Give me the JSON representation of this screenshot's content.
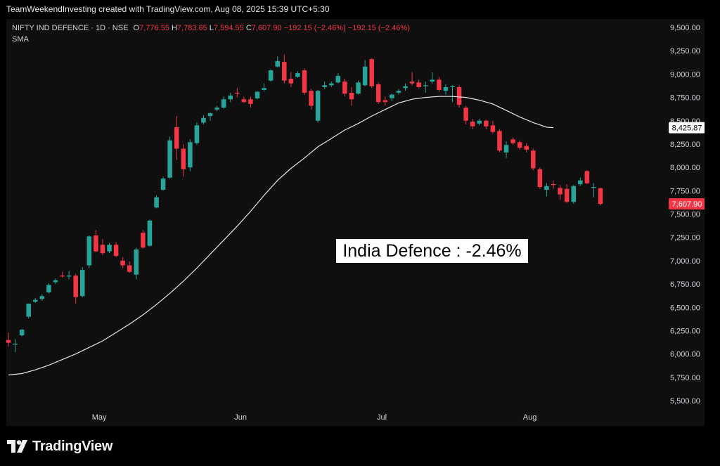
{
  "header": {
    "credit": "TeamWeekendInvesting created with TradingView.com, Aug 08, 2025 15:39 UTC+5:30"
  },
  "legend": {
    "symbol": "NIFTY IND DEFENCE · 1D · NSE",
    "open_label": "O",
    "open": "7,776.55",
    "high_label": "H",
    "high": "7,783.65",
    "low_label": "L",
    "low": "7,594.55",
    "close_label": "C",
    "close": "7,607.90",
    "change": "−192.15 (−2.46%)",
    "change2": "−192.15 (−2.46%)",
    "indicator": "SMA"
  },
  "annotation": "India Defence : -2.46%",
  "brand": {
    "name": "TradingView",
    "icon": "tradingview-logo-icon"
  },
  "colors": {
    "background": "#000000",
    "plot": "#0f0f0f",
    "up": "#26a69a",
    "down": "#f23645",
    "sma": "#e6e6e6",
    "sma_badge": "#ffffff",
    "price_badge": "#f23645"
  },
  "chart_data": {
    "type": "candlestick",
    "title": "",
    "x_labels": [
      "May",
      "Jun",
      "Jul",
      "Aug"
    ],
    "y_ticks": [
      "5,500.00",
      "5,750.00",
      "6,000.00",
      "6,250.00",
      "6,500.00",
      "6,750.00",
      "7,000.00",
      "7,250.00",
      "7,500.00",
      "7,750.00",
      "8,000.00",
      "8,250.00",
      "8,500.00",
      "8,750.00",
      "9,000.00",
      "9,250.00",
      "9,500.00"
    ],
    "ylim": [
      5480,
      9550
    ],
    "grid": false,
    "sma_value_label": "8,425.87",
    "last_price_label": "7,607.90",
    "candles": [
      {
        "date": "Apr 08",
        "o": 6150,
        "h": 6230,
        "l": 6080,
        "c": 6120
      },
      {
        "date": "Apr 09",
        "o": 6110,
        "h": 6160,
        "l": 6020,
        "c": 6110
      },
      {
        "date": "Apr 11",
        "o": 6200,
        "h": 6270,
        "l": 6190,
        "c": 6260
      },
      {
        "date": "Apr 15",
        "o": 6400,
        "h": 6520,
        "l": 6380,
        "c": 6540
      },
      {
        "date": "Apr 16",
        "o": 6560,
        "h": 6600,
        "l": 6550,
        "c": 6580
      },
      {
        "date": "Apr 17",
        "o": 6590,
        "h": 6640,
        "l": 6570,
        "c": 6620
      },
      {
        "date": "Apr 21",
        "o": 6660,
        "h": 6760,
        "l": 6650,
        "c": 6740
      },
      {
        "date": "Apr 22",
        "o": 6770,
        "h": 6810,
        "l": 6750,
        "c": 6790
      },
      {
        "date": "Apr 23",
        "o": 6840,
        "h": 6880,
        "l": 6820,
        "c": 6830
      },
      {
        "date": "Apr 24",
        "o": 6830,
        "h": 6890,
        "l": 6800,
        "c": 6840
      },
      {
        "date": "Apr 25",
        "o": 6840,
        "h": 6860,
        "l": 6540,
        "c": 6610
      },
      {
        "date": "Apr 28",
        "o": 6620,
        "h": 6930,
        "l": 6610,
        "c": 6900
      },
      {
        "date": "Apr 29",
        "o": 6950,
        "h": 7270,
        "l": 6920,
        "c": 7260
      },
      {
        "date": "Apr 30",
        "o": 7270,
        "h": 7330,
        "l": 7090,
        "c": 7100
      },
      {
        "date": "May 02",
        "o": 7170,
        "h": 7230,
        "l": 7060,
        "c": 7080
      },
      {
        "date": "May 05",
        "o": 7100,
        "h": 7190,
        "l": 7080,
        "c": 7170
      },
      {
        "date": "May 06",
        "o": 7170,
        "h": 7200,
        "l": 7040,
        "c": 7050
      },
      {
        "date": "May 07",
        "o": 7000,
        "h": 7040,
        "l": 6920,
        "c": 6950
      },
      {
        "date": "May 08",
        "o": 6950,
        "h": 6990,
        "l": 6870,
        "c": 6880
      },
      {
        "date": "May 09",
        "o": 6850,
        "h": 7140,
        "l": 6800,
        "c": 7120
      },
      {
        "date": "May 12",
        "o": 7300,
        "h": 7330,
        "l": 7130,
        "c": 7140
      },
      {
        "date": "May 13",
        "o": 7160,
        "h": 7440,
        "l": 7150,
        "c": 7430
      },
      {
        "date": "May 14",
        "o": 7570,
        "h": 7700,
        "l": 7560,
        "c": 7680
      },
      {
        "date": "May 15",
        "o": 7760,
        "h": 7900,
        "l": 7750,
        "c": 7880
      },
      {
        "date": "May 16",
        "o": 7890,
        "h": 8330,
        "l": 7880,
        "c": 8290
      },
      {
        "date": "May 19",
        "o": 8430,
        "h": 8550,
        "l": 8080,
        "c": 8200
      },
      {
        "date": "May 20",
        "o": 8200,
        "h": 8250,
        "l": 7900,
        "c": 7980
      },
      {
        "date": "May 21",
        "o": 8000,
        "h": 8300,
        "l": 7960,
        "c": 8270
      },
      {
        "date": "May 22",
        "o": 8260,
        "h": 8480,
        "l": 8240,
        "c": 8450
      },
      {
        "date": "May 23",
        "o": 8480,
        "h": 8560,
        "l": 8460,
        "c": 8530
      },
      {
        "date": "May 26",
        "o": 8550,
        "h": 8590,
        "l": 8500,
        "c": 8580
      },
      {
        "date": "May 27",
        "o": 8620,
        "h": 8660,
        "l": 8600,
        "c": 8640
      },
      {
        "date": "May 28",
        "o": 8640,
        "h": 8760,
        "l": 8630,
        "c": 8730
      },
      {
        "date": "May 29",
        "o": 8730,
        "h": 8800,
        "l": 8700,
        "c": 8770
      },
      {
        "date": "May 30",
        "o": 8800,
        "h": 8850,
        "l": 8750,
        "c": 8790
      },
      {
        "date": "Jun 02",
        "o": 8730,
        "h": 8760,
        "l": 8690,
        "c": 8700
      },
      {
        "date": "Jun 03",
        "o": 8730,
        "h": 8760,
        "l": 8640,
        "c": 8680
      },
      {
        "date": "Jun 04",
        "o": 8740,
        "h": 8820,
        "l": 8730,
        "c": 8810
      },
      {
        "date": "Jun 05",
        "o": 8830,
        "h": 8900,
        "l": 8810,
        "c": 8850
      },
      {
        "date": "Jun 06",
        "o": 8930,
        "h": 9050,
        "l": 8920,
        "c": 9040
      },
      {
        "date": "Jun 09",
        "o": 9080,
        "h": 9190,
        "l": 9070,
        "c": 9140
      },
      {
        "date": "Jun 10",
        "o": 9130,
        "h": 9210,
        "l": 8900,
        "c": 8930
      },
      {
        "date": "Jun 11",
        "o": 8950,
        "h": 9020,
        "l": 8860,
        "c": 8900
      },
      {
        "date": "Jun 12",
        "o": 8970,
        "h": 9030,
        "l": 8960,
        "c": 9010
      },
      {
        "date": "Jun 13",
        "o": 9040,
        "h": 9060,
        "l": 8780,
        "c": 8800
      },
      {
        "date": "Jun 16",
        "o": 8820,
        "h": 8840,
        "l": 8620,
        "c": 8660
      },
      {
        "date": "Jun 17",
        "o": 8500,
        "h": 8830,
        "l": 8480,
        "c": 8820
      },
      {
        "date": "Jun 18",
        "o": 8860,
        "h": 8920,
        "l": 8840,
        "c": 8880
      },
      {
        "date": "Jun 19",
        "o": 8880,
        "h": 8920,
        "l": 8860,
        "c": 8900
      },
      {
        "date": "Jun 20",
        "o": 8910,
        "h": 9010,
        "l": 8900,
        "c": 8980
      },
      {
        "date": "Jun 23",
        "o": 8920,
        "h": 8950,
        "l": 8760,
        "c": 8790
      },
      {
        "date": "Jun 24",
        "o": 8800,
        "h": 8860,
        "l": 8660,
        "c": 8730
      },
      {
        "date": "Jun 25",
        "o": 8790,
        "h": 8930,
        "l": 8780,
        "c": 8910
      },
      {
        "date": "Jun 26",
        "o": 8880,
        "h": 9150,
        "l": 8870,
        "c": 9080
      },
      {
        "date": "Jun 27",
        "o": 9160,
        "h": 9170,
        "l": 8850,
        "c": 8870
      },
      {
        "date": "Jun 30",
        "o": 8890,
        "h": 8910,
        "l": 8680,
        "c": 8700
      },
      {
        "date": "Jul 01",
        "o": 8720,
        "h": 8760,
        "l": 8660,
        "c": 8700
      },
      {
        "date": "Jul 02",
        "o": 8740,
        "h": 8790,
        "l": 8710,
        "c": 8780
      },
      {
        "date": "Jul 03",
        "o": 8800,
        "h": 8840,
        "l": 8780,
        "c": 8820
      },
      {
        "date": "Jul 04",
        "o": 8850,
        "h": 8900,
        "l": 8820,
        "c": 8870
      },
      {
        "date": "Jul 07",
        "o": 8920,
        "h": 9020,
        "l": 8880,
        "c": 8900
      },
      {
        "date": "Jul 08",
        "o": 8910,
        "h": 8940,
        "l": 8850,
        "c": 8860
      },
      {
        "date": "Jul 09",
        "o": 8870,
        "h": 8920,
        "l": 8800,
        "c": 8880
      },
      {
        "date": "Jul 10",
        "o": 8920,
        "h": 9020,
        "l": 8900,
        "c": 8940
      },
      {
        "date": "Jul 11",
        "o": 8940,
        "h": 8970,
        "l": 8810,
        "c": 8830
      },
      {
        "date": "Jul 14",
        "o": 8820,
        "h": 8890,
        "l": 8780,
        "c": 8860
      },
      {
        "date": "Jul 15",
        "o": 8860,
        "h": 8880,
        "l": 8700,
        "c": 8870
      },
      {
        "date": "Jul 16",
        "o": 8860,
        "h": 8880,
        "l": 8640,
        "c": 8670
      },
      {
        "date": "Jul 17",
        "o": 8640,
        "h": 8660,
        "l": 8460,
        "c": 8500
      },
      {
        "date": "Jul 18",
        "o": 8490,
        "h": 8520,
        "l": 8410,
        "c": 8440
      },
      {
        "date": "Jul 21",
        "o": 8470,
        "h": 8520,
        "l": 8450,
        "c": 8500
      },
      {
        "date": "Jul 22",
        "o": 8500,
        "h": 8510,
        "l": 8410,
        "c": 8440
      },
      {
        "date": "Jul 23",
        "o": 8450,
        "h": 8500,
        "l": 8360,
        "c": 8380
      },
      {
        "date": "Jul 24",
        "o": 8390,
        "h": 8410,
        "l": 8160,
        "c": 8180
      },
      {
        "date": "Jul 25",
        "o": 8160,
        "h": 8280,
        "l": 8100,
        "c": 8240
      },
      {
        "date": "Jul 28",
        "o": 8300,
        "h": 8320,
        "l": 8240,
        "c": 8260
      },
      {
        "date": "Jul 29",
        "o": 8270,
        "h": 8290,
        "l": 8190,
        "c": 8210
      },
      {
        "date": "Jul 30",
        "o": 8230,
        "h": 8260,
        "l": 8160,
        "c": 8190
      },
      {
        "date": "Jul 31",
        "o": 8180,
        "h": 8200,
        "l": 7970,
        "c": 7990
      },
      {
        "date": "Aug 01",
        "o": 7980,
        "h": 8000,
        "l": 7770,
        "c": 7790
      },
      {
        "date": "Aug 04",
        "o": 7760,
        "h": 7830,
        "l": 7690,
        "c": 7800
      },
      {
        "date": "Aug 05",
        "o": 7820,
        "h": 7860,
        "l": 7770,
        "c": 7810
      },
      {
        "date": "Aug 06",
        "o": 7780,
        "h": 7810,
        "l": 7650,
        "c": 7710
      },
      {
        "date": "Aug 07",
        "o": 7770,
        "h": 7820,
        "l": 7620,
        "c": 7630
      },
      {
        "date": "Aug 08a",
        "o": 7630,
        "h": 7810,
        "l": 7610,
        "c": 7800
      },
      {
        "date": "Aug 08b",
        "o": 7820,
        "h": 7890,
        "l": 7800,
        "c": 7860
      },
      {
        "date": "Aug 08c",
        "o": 7960,
        "h": 7970,
        "l": 7820,
        "c": 7830
      },
      {
        "date": "Aug 08d",
        "o": 7790,
        "h": 7830,
        "l": 7680,
        "c": 7790
      },
      {
        "date": "Aug 08",
        "o": 7776.55,
        "h": 7783.65,
        "l": 7594.55,
        "c": 7607.9
      }
    ],
    "sma": [
      {
        "i": 0,
        "v": 5775
      },
      {
        "i": 2,
        "v": 5790
      },
      {
        "i": 4,
        "v": 5830
      },
      {
        "i": 6,
        "v": 5880
      },
      {
        "i": 8,
        "v": 5940
      },
      {
        "i": 10,
        "v": 6000
      },
      {
        "i": 12,
        "v": 6070
      },
      {
        "i": 14,
        "v": 6140
      },
      {
        "i": 16,
        "v": 6230
      },
      {
        "i": 18,
        "v": 6320
      },
      {
        "i": 20,
        "v": 6420
      },
      {
        "i": 22,
        "v": 6530
      },
      {
        "i": 24,
        "v": 6650
      },
      {
        "i": 26,
        "v": 6780
      },
      {
        "i": 28,
        "v": 6920
      },
      {
        "i": 30,
        "v": 7070
      },
      {
        "i": 32,
        "v": 7220
      },
      {
        "i": 34,
        "v": 7370
      },
      {
        "i": 36,
        "v": 7530
      },
      {
        "i": 38,
        "v": 7700
      },
      {
        "i": 40,
        "v": 7860
      },
      {
        "i": 42,
        "v": 7990
      },
      {
        "i": 44,
        "v": 8100
      },
      {
        "i": 46,
        "v": 8220
      },
      {
        "i": 48,
        "v": 8310
      },
      {
        "i": 50,
        "v": 8400
      },
      {
        "i": 52,
        "v": 8470
      },
      {
        "i": 54,
        "v": 8550
      },
      {
        "i": 56,
        "v": 8620
      },
      {
        "i": 58,
        "v": 8690
      },
      {
        "i": 60,
        "v": 8730
      },
      {
        "i": 62,
        "v": 8750
      },
      {
        "i": 64,
        "v": 8760
      },
      {
        "i": 66,
        "v": 8760
      },
      {
        "i": 68,
        "v": 8750
      },
      {
        "i": 70,
        "v": 8720
      },
      {
        "i": 72,
        "v": 8680
      },
      {
        "i": 74,
        "v": 8610
      },
      {
        "i": 76,
        "v": 8540
      },
      {
        "i": 78,
        "v": 8480
      },
      {
        "i": 80,
        "v": 8430
      },
      {
        "i": 81,
        "v": 8425.87
      }
    ]
  }
}
